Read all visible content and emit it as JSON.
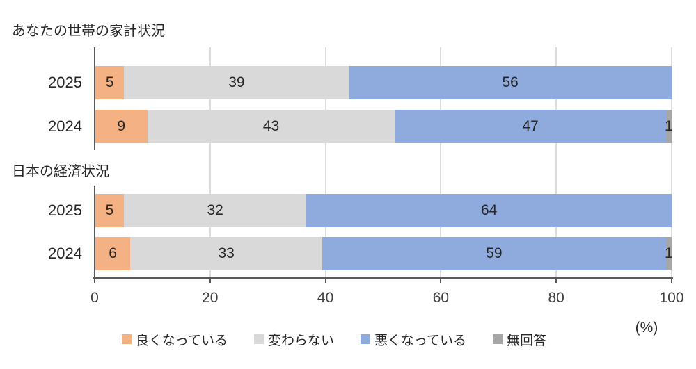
{
  "page": {
    "background": "#ffffff"
  },
  "colors": {
    "better": "#f4b183",
    "unchanged": "#d9d9d9",
    "worse": "#8faadc",
    "no_answer": "#a6a6a6",
    "axis": "#595959",
    "gridline": "#dcdcdc",
    "text": "#262626"
  },
  "axis": {
    "min": 0,
    "max": 100,
    "ticks": [
      "0",
      "20",
      "40",
      "60",
      "80",
      "100"
    ],
    "unit": "(%)"
  },
  "legend": {
    "items": [
      {
        "key": "better",
        "label": "良くなっている",
        "color": "#f4b183"
      },
      {
        "key": "unchanged",
        "label": "変わらない",
        "color": "#d9d9d9"
      },
      {
        "key": "worse",
        "label": "悪くなっている",
        "color": "#8faadc"
      },
      {
        "key": "no-answer",
        "label": "無回答",
        "color": "#a6a6a6"
      }
    ]
  },
  "chart_data": [
    {
      "type": "bar",
      "orientation": "horizontal",
      "stacked": true,
      "stack_mode": "percent",
      "title": "あなたの世帯の家計状況",
      "categories": [
        "2025",
        "2024"
      ],
      "series": [
        {
          "name": "良くなっている",
          "key": "better",
          "color": "#f4b183",
          "values": [
            5,
            9
          ]
        },
        {
          "name": "変わらない",
          "key": "unchanged",
          "color": "#d9d9d9",
          "values": [
            39,
            43
          ]
        },
        {
          "name": "悪くなっている",
          "key": "worse",
          "color": "#8faadc",
          "values": [
            56,
            47
          ]
        },
        {
          "name": "無回答",
          "key": "no-answer",
          "color": "#a6a6a6",
          "values": [
            0,
            1
          ]
        }
      ],
      "xlim": [
        0,
        100
      ],
      "grid": true,
      "legend_position": "bottom"
    },
    {
      "type": "bar",
      "orientation": "horizontal",
      "stacked": true,
      "stack_mode": "percent",
      "title": "日本の経済状況",
      "categories": [
        "2025",
        "2024"
      ],
      "series": [
        {
          "name": "良くなっている",
          "key": "better",
          "color": "#f4b183",
          "values": [
            5,
            6
          ]
        },
        {
          "name": "変わらない",
          "key": "unchanged",
          "color": "#d9d9d9",
          "values": [
            32,
            33
          ]
        },
        {
          "name": "悪くなっている",
          "key": "worse",
          "color": "#8faadc",
          "values": [
            64,
            59
          ]
        },
        {
          "name": "無回答",
          "key": "no-answer",
          "color": "#a6a6a6",
          "values": [
            0,
            1
          ]
        }
      ],
      "xlim": [
        0,
        100
      ],
      "grid": true,
      "legend_position": "bottom"
    }
  ]
}
